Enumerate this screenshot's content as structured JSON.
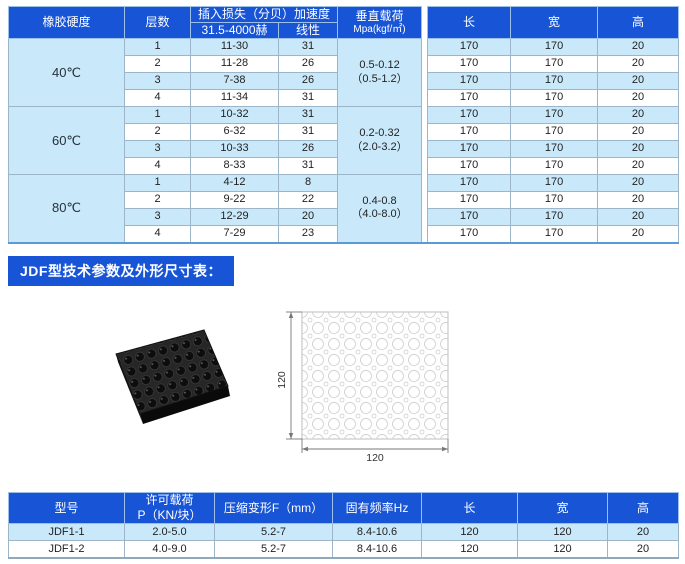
{
  "spec_table": {
    "headers": {
      "hardness": "橡胶硬度",
      "layers": "层数",
      "insertion_loss_group": "插入损失（分贝）加速度",
      "freq_band": "31.5-4000赫",
      "linear": "线性",
      "vertical_load_line1": "垂直载荷",
      "vertical_load_line2": "Mpa(kgf/㎡)",
      "length": "长",
      "width": "宽",
      "height": "高"
    },
    "groups": [
      {
        "hardness": "40℃",
        "vertical_load": [
          "0.5-0.12",
          "（0.5-1.2）"
        ],
        "rows": [
          [
            "1",
            "11-30",
            "31",
            "170",
            "170",
            "20"
          ],
          [
            "2",
            "11-28",
            "26",
            "170",
            "170",
            "20"
          ],
          [
            "3",
            "7-38",
            "26",
            "170",
            "170",
            "20"
          ],
          [
            "4",
            "11-34",
            "31",
            "170",
            "170",
            "20"
          ]
        ]
      },
      {
        "hardness": "60℃",
        "vertical_load": [
          "0.2-0.32",
          "（2.0-3.2）"
        ],
        "rows": [
          [
            "1",
            "10-32",
            "31",
            "170",
            "170",
            "20"
          ],
          [
            "2",
            "6-32",
            "31",
            "170",
            "170",
            "20"
          ],
          [
            "3",
            "10-33",
            "26",
            "170",
            "170",
            "20"
          ],
          [
            "4",
            "8-33",
            "31",
            "170",
            "170",
            "20"
          ]
        ]
      },
      {
        "hardness": "80℃",
        "vertical_load": [
          "0.4-0.8",
          "（4.0-8.0）"
        ],
        "rows": [
          [
            "1",
            "4-12",
            "8",
            "170",
            "170",
            "20"
          ],
          [
            "2",
            "9-22",
            "22",
            "170",
            "170",
            "20"
          ],
          [
            "3",
            "12-29",
            "20",
            "170",
            "170",
            "20"
          ],
          [
            "4",
            "7-29",
            "23",
            "170",
            "170",
            "20"
          ]
        ]
      }
    ]
  },
  "section_title": "JDF型技术参数及外形尺寸表：",
  "drawing": {
    "dim_height": "120",
    "dim_width": "120"
  },
  "jdf_table": {
    "headers": [
      "型号",
      "许可载荷\nP（KN/块）",
      "压缩变形F（mm）",
      "固有频率Hz",
      "长",
      "宽",
      "高"
    ],
    "rows": [
      [
        "JDF1-1",
        "2.0-5.0",
        "5.2-7",
        "8.4-10.6",
        "120",
        "120",
        "20"
      ],
      [
        "JDF1-2",
        "4.0-9.0",
        "5.2-7",
        "8.4-10.6",
        "120",
        "120",
        "20"
      ]
    ]
  },
  "colors": {
    "header_blue": "#1854d6",
    "row_light_blue": "#c9e9fb",
    "row_white": "#ffffff",
    "table_border": "#9db5c9"
  }
}
